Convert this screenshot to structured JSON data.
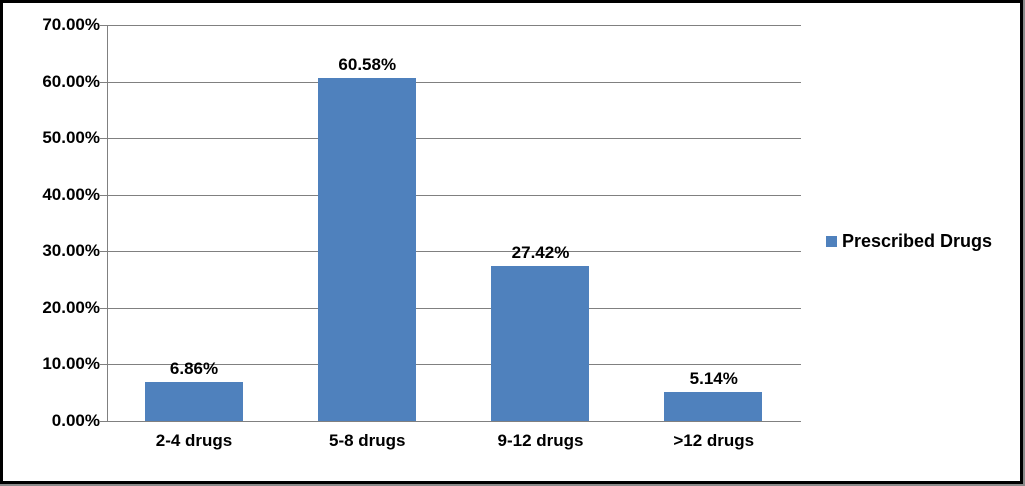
{
  "chart_data": {
    "type": "bar",
    "title": "",
    "xlabel": "",
    "ylabel": "",
    "categories": [
      "2-4 drugs",
      "5-8 drugs",
      "9-12 drugs",
      ">12 drugs"
    ],
    "values": [
      6.86,
      60.58,
      27.42,
      5.14
    ],
    "data_labels": [
      "6.86%",
      "60.58%",
      "27.42%",
      "5.14%"
    ],
    "series_name": "Prescribed Drugs",
    "ylim": [
      0,
      70
    ],
    "y_tick_step": 10,
    "y_tick_labels": [
      "0.00%",
      "10.00%",
      "20.00%",
      "30.00%",
      "40.00%",
      "50.00%",
      "60.00%",
      "70.00%"
    ],
    "grid": true,
    "legend_position": "right",
    "colors": {
      "bar_fill": "#4F81BD",
      "gridline": "#808080",
      "axis": "#808080",
      "text": "#000000",
      "frame_border": "#000000",
      "frame_shadow": "#8a8a8a",
      "background": "#ffffff"
    }
  },
  "legend": {
    "label": "Prescribed Drugs"
  }
}
